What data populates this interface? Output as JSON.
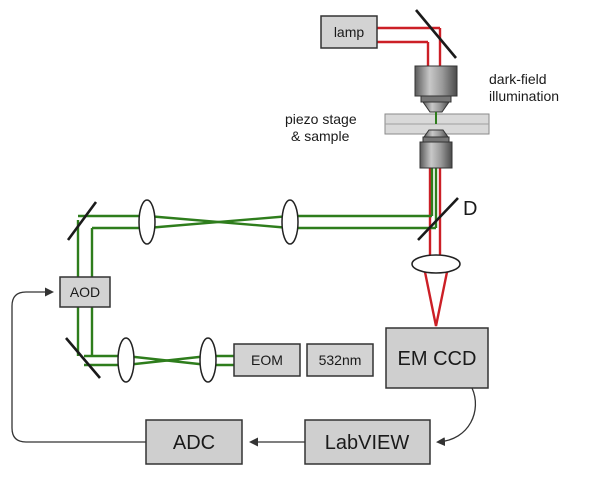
{
  "components": {
    "lamp": "lamp",
    "aod": "AOD",
    "eom": "EOM",
    "laser": "532nm",
    "camera": "EM CCD",
    "labview": "LabVIEW",
    "adc": "ADC",
    "dichroic": "D"
  },
  "annotations": {
    "darkfield_line1": "dark-field",
    "darkfield_line2": "illumination",
    "stage_line1": "piezo stage",
    "stage_line2": "& sample"
  },
  "colors": {
    "laser_beam": "#2e7d1c",
    "light_beam": "#cc1f26",
    "box_fill": "#d3d3d3"
  }
}
